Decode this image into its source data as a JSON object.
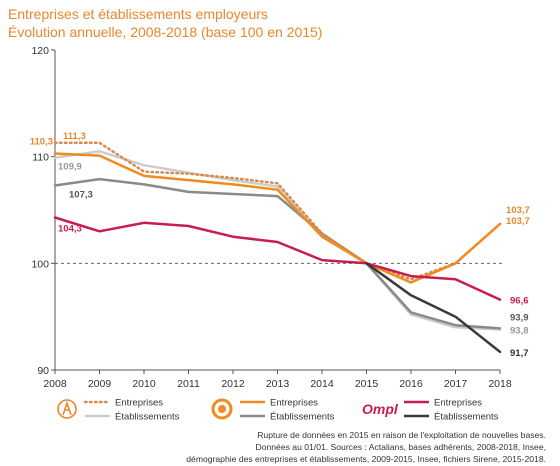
{
  "header": {
    "title_line1": "Entreprises et établissements employeurs",
    "title_line2": "Évolution annuelle, 2008-2018 (base 100 en 2015)"
  },
  "chart_data": {
    "type": "line",
    "x": [
      2008,
      2009,
      2010,
      2011,
      2012,
      2013,
      2014,
      2015,
      2016,
      2017,
      2018
    ],
    "ylim": [
      90,
      120
    ],
    "yticks": [
      90,
      100,
      110,
      120
    ],
    "reference_line": 100,
    "series": [
      {
        "name": "Entreprises",
        "group": "actalians",
        "color": "#d98a4e",
        "dash": "dotted",
        "values": [
          111.3,
          111.3,
          108.6,
          108.4,
          108.0,
          107.5,
          102.8,
          100.0,
          98.5,
          100.0,
          103.7
        ]
      },
      {
        "name": "Établissements",
        "group": "actalians",
        "color": "#cccccc",
        "dash": "solid",
        "values": [
          109.9,
          110.5,
          109.2,
          108.5,
          107.8,
          107.2,
          102.7,
          100.0,
          95.2,
          94.0,
          93.8
        ]
      },
      {
        "name": "Entreprises",
        "group": "opco",
        "color": "#f08c1e",
        "dash": "solid",
        "values": [
          110.3,
          110.1,
          108.2,
          107.8,
          107.4,
          106.9,
          102.5,
          100.0,
          98.2,
          100.0,
          103.7
        ]
      },
      {
        "name": "Établissements",
        "group": "opco",
        "color": "#8a8a8a",
        "dash": "solid",
        "values": [
          107.3,
          107.9,
          107.4,
          106.7,
          106.5,
          106.3,
          102.8,
          100.0,
          95.4,
          94.2,
          93.9
        ]
      },
      {
        "name": "Entreprises",
        "group": "ompl",
        "color": "#c71e4e",
        "dash": "solid",
        "values": [
          104.3,
          103.0,
          103.8,
          103.5,
          102.5,
          102.0,
          100.3,
          100.0,
          98.8,
          98.5,
          96.6
        ]
      },
      {
        "name": "Établissements",
        "group": "ompl",
        "color": "#3a3a3a",
        "dash": "solid",
        "values": [
          null,
          null,
          null,
          null,
          null,
          null,
          null,
          100.0,
          97.0,
          95.0,
          91.7
        ]
      }
    ],
    "data_labels": [
      {
        "text": "111,3",
        "x": 2008,
        "y": 111.3,
        "color": "#e8872b"
      },
      {
        "text": "110,3",
        "x": 2008,
        "y": 110.3,
        "color": "#e8872b"
      },
      {
        "text": "109,9",
        "x": 2008,
        "y": 109.9,
        "color": "#999999"
      },
      {
        "text": "107,3",
        "x": 2008,
        "y": 107.3,
        "color": "#555555"
      },
      {
        "text": "104,3",
        "x": 2008,
        "y": 104.3,
        "color": "#c71e4e"
      },
      {
        "text": "103,7",
        "x": 2018,
        "y": 103.7,
        "color": "#e8872b"
      },
      {
        "text": "103,7",
        "x": 2018,
        "y": 103.7,
        "color": "#e8872b"
      },
      {
        "text": "96,6",
        "x": 2018,
        "y": 96.6,
        "color": "#c71e4e"
      },
      {
        "text": "93,9",
        "x": 2018,
        "y": 93.9,
        "color": "#555555"
      },
      {
        "text": "93,8",
        "x": 2018,
        "y": 93.8,
        "color": "#999999"
      },
      {
        "text": "91,7",
        "x": 2018,
        "y": 91.7,
        "color": "#333333"
      }
    ]
  },
  "legend": {
    "groups": [
      {
        "logo": "actalians-logo-icon",
        "items": [
          "Entreprises",
          "Établissements"
        ]
      },
      {
        "logo": "opco-logo-icon",
        "items": [
          "Entreprises",
          "Établissements"
        ]
      },
      {
        "logo": "ompl-logo-icon",
        "logo_text": "Ompl",
        "items": [
          "Entreprises",
          "Établissements"
        ]
      }
    ]
  },
  "notes": {
    "line1": "Rupture de données en 2015 en raison de l'exploitation de nouvelles bases.",
    "line2": "Données au 01/01. Sources : Actalians, bases adhérents, 2008-2018, Insee,",
    "line3": "démographie des entreprises et établissements, 2009-2015, Insee, fichiers Sirene, 2015-2018."
  }
}
